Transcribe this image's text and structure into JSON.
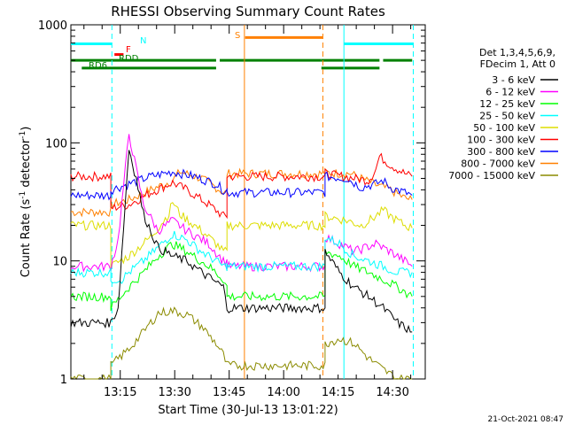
{
  "chart_data": {
    "type": "line",
    "title": "RHESSI Observing Summary Count Rates",
    "xlabel": "Start Time (30-Jul-13 13:01:22)",
    "ylabel_main": "Count Rate (s",
    "ylabel_sup1": "-1",
    "ylabel_mid": " detector",
    "ylabel_sup2": "-1",
    "ylabel_end": ")",
    "yscale": "log",
    "ylim": [
      1,
      1000
    ],
    "xlim_minutes": [
      0,
      97.6
    ],
    "y_ticks": [
      {
        "v": 1,
        "label": "1"
      },
      {
        "v": 10,
        "label": "10"
      },
      {
        "v": 100,
        "label": "100"
      },
      {
        "v": 1000,
        "label": "1000"
      }
    ],
    "x_ticks": [
      {
        "t": 13.6,
        "label": "13:15"
      },
      {
        "t": 28.6,
        "label": "13:30"
      },
      {
        "t": 43.6,
        "label": "13:45"
      },
      {
        "t": 58.6,
        "label": "14:00"
      },
      {
        "t": 73.6,
        "label": "14:15"
      },
      {
        "t": 88.6,
        "label": "14:30"
      }
    ],
    "legend_header": [
      "Det 1,3,4,5,6,9,",
      "FDecim 1, Att 0"
    ],
    "legend": [
      {
        "name": "3 - 6 keV",
        "color": "#000000"
      },
      {
        "name": "6 - 12 keV",
        "color": "#ff00ff"
      },
      {
        "name": "12 - 25 keV",
        "color": "#00ff00"
      },
      {
        "name": "25 - 50 keV",
        "color": "#00ffff"
      },
      {
        "name": "50 - 100 keV",
        "color": "#dddd00"
      },
      {
        "name": "100 - 300 keV",
        "color": "#ff0000"
      },
      {
        "name": "300 - 800 keV",
        "color": "#0000ff"
      },
      {
        "name": "800 - 7000 keV",
        "color": "#ff8000"
      },
      {
        "name": "7000 - 15000 keV",
        "color": "#8b8b00"
      }
    ],
    "series": [
      {
        "color": "#ff8000",
        "points": [
          [
            0,
            26
          ],
          [
            11,
            26
          ],
          [
            11,
            30
          ],
          [
            16,
            33
          ],
          [
            22,
            40
          ],
          [
            28,
            48
          ],
          [
            30,
            57
          ],
          [
            36,
            50
          ],
          [
            40,
            42
          ],
          [
            42,
            38
          ],
          [
            43,
            38
          ],
          [
            43,
            55
          ],
          [
            46,
            55
          ],
          [
            70,
            55
          ],
          [
            70,
            56
          ],
          [
            77,
            55
          ],
          [
            80,
            50
          ],
          [
            84,
            44
          ],
          [
            88,
            40
          ],
          [
            92,
            34
          ],
          [
            94,
            33
          ]
        ]
      },
      {
        "color": "#ff0000",
        "points": [
          [
            0,
            52
          ],
          [
            11,
            52
          ],
          [
            11,
            28
          ],
          [
            16,
            30
          ],
          [
            22,
            38
          ],
          [
            28,
            46
          ],
          [
            32,
            40
          ],
          [
            38,
            30
          ],
          [
            42,
            24
          ],
          [
            43,
            24
          ],
          [
            43,
            52
          ],
          [
            46,
            52
          ],
          [
            70,
            52
          ],
          [
            70,
            55
          ],
          [
            82,
            48
          ],
          [
            84,
            60
          ],
          [
            85,
            77
          ],
          [
            88,
            65
          ],
          [
            92,
            55
          ],
          [
            94,
            52
          ]
        ]
      },
      {
        "color": "#0000ff",
        "points": [
          [
            0,
            36
          ],
          [
            11,
            36
          ],
          [
            11,
            40
          ],
          [
            16,
            45
          ],
          [
            22,
            52
          ],
          [
            28,
            57
          ],
          [
            34,
            52
          ],
          [
            40,
            45
          ],
          [
            42,
            40
          ],
          [
            43,
            40
          ],
          [
            43,
            38
          ],
          [
            46,
            38
          ],
          [
            70,
            38
          ],
          [
            70,
            52
          ],
          [
            76,
            50
          ],
          [
            80,
            42
          ],
          [
            84,
            45
          ],
          [
            86,
            48
          ],
          [
            88,
            42
          ],
          [
            92,
            38
          ],
          [
            94,
            36
          ]
        ]
      },
      {
        "color": "#dddd00",
        "points": [
          [
            0,
            20
          ],
          [
            11,
            20
          ],
          [
            11,
            9
          ],
          [
            16,
            11
          ],
          [
            22,
            16
          ],
          [
            27,
            25
          ],
          [
            28,
            32
          ],
          [
            30,
            25
          ],
          [
            36,
            18
          ],
          [
            40,
            14
          ],
          [
            42,
            12
          ],
          [
            43,
            12
          ],
          [
            43,
            20
          ],
          [
            46,
            20
          ],
          [
            70,
            20
          ],
          [
            70,
            24
          ],
          [
            76,
            22
          ],
          [
            80,
            20
          ],
          [
            84,
            24
          ],
          [
            86,
            27
          ],
          [
            88,
            24
          ],
          [
            92,
            20
          ],
          [
            94,
            19
          ]
        ]
      },
      {
        "color": "#ff00ff",
        "points": [
          [
            0,
            9
          ],
          [
            11,
            9
          ],
          [
            13,
            15
          ],
          [
            16,
            120
          ],
          [
            18,
            60
          ],
          [
            20,
            30
          ],
          [
            24,
            18
          ],
          [
            28,
            22
          ],
          [
            32,
            18
          ],
          [
            38,
            14
          ],
          [
            42,
            10
          ],
          [
            43,
            10
          ],
          [
            43,
            9
          ],
          [
            46,
            9
          ],
          [
            70,
            9
          ],
          [
            70,
            16
          ],
          [
            74,
            14
          ],
          [
            78,
            12
          ],
          [
            84,
            14
          ],
          [
            88,
            12
          ],
          [
            92,
            10
          ],
          [
            94,
            9
          ]
        ]
      },
      {
        "color": "#00ffff",
        "points": [
          [
            0,
            8
          ],
          [
            11,
            8
          ],
          [
            11,
            7
          ],
          [
            14,
            7
          ],
          [
            16,
            8
          ],
          [
            20,
            10
          ],
          [
            24,
            13
          ],
          [
            28,
            17
          ],
          [
            32,
            15
          ],
          [
            36,
            12
          ],
          [
            40,
            10
          ],
          [
            42,
            9
          ],
          [
            43,
            9
          ],
          [
            43,
            9
          ],
          [
            46,
            9
          ],
          [
            70,
            9
          ],
          [
            70,
            16
          ],
          [
            74,
            14
          ],
          [
            78,
            11
          ],
          [
            82,
            10
          ],
          [
            86,
            9
          ],
          [
            90,
            8
          ],
          [
            94,
            8
          ]
        ]
      },
      {
        "color": "#00ff00",
        "points": [
          [
            0,
            5
          ],
          [
            11,
            5
          ],
          [
            11,
            4
          ],
          [
            16,
            6
          ],
          [
            20,
            8
          ],
          [
            24,
            11
          ],
          [
            28,
            14
          ],
          [
            32,
            12
          ],
          [
            38,
            9
          ],
          [
            42,
            7
          ],
          [
            43,
            6
          ],
          [
            43,
            5
          ],
          [
            46,
            5
          ],
          [
            70,
            5
          ],
          [
            70,
            12
          ],
          [
            74,
            11
          ],
          [
            78,
            9
          ],
          [
            82,
            8
          ],
          [
            86,
            7
          ],
          [
            90,
            6
          ],
          [
            94,
            5
          ]
        ]
      },
      {
        "color": "#000000",
        "points": [
          [
            0,
            3
          ],
          [
            11,
            3
          ],
          [
            13,
            4
          ],
          [
            16,
            90
          ],
          [
            18,
            50
          ],
          [
            20,
            25
          ],
          [
            24,
            13
          ],
          [
            28,
            11
          ],
          [
            32,
            10
          ],
          [
            36,
            8
          ],
          [
            42,
            6
          ],
          [
            43,
            4
          ],
          [
            46,
            4
          ],
          [
            70,
            4
          ],
          [
            70,
            12
          ],
          [
            74,
            8
          ],
          [
            78,
            6
          ],
          [
            82,
            5
          ],
          [
            86,
            4
          ],
          [
            90,
            3
          ],
          [
            94,
            2.5
          ]
        ]
      },
      {
        "color": "#8b8b00",
        "points": [
          [
            0,
            1
          ],
          [
            11,
            1
          ],
          [
            11,
            1.3
          ],
          [
            16,
            1.8
          ],
          [
            20,
            2.5
          ],
          [
            24,
            3.6
          ],
          [
            28,
            3.8
          ],
          [
            32,
            3.5
          ],
          [
            36,
            2.8
          ],
          [
            40,
            2
          ],
          [
            42,
            1.6
          ],
          [
            43,
            1.3
          ],
          [
            46,
            1.3
          ],
          [
            70,
            1.3
          ],
          [
            70,
            2
          ],
          [
            74,
            2.2
          ],
          [
            78,
            2.0
          ],
          [
            82,
            1.5
          ],
          [
            86,
            1.2
          ],
          [
            90,
            1
          ],
          [
            94,
            1
          ]
        ]
      }
    ],
    "status_bars": [
      {
        "label": "S",
        "color": "#ff8000",
        "y": 780,
        "segments": [
          [
            48,
            69.3
          ]
        ]
      },
      {
        "label": "N",
        "color": "#00ffff",
        "y": 690,
        "segments": [
          [
            0,
            11.3
          ],
          [
            75.2,
            94.3
          ]
        ]
      },
      {
        "label": "F",
        "color": "#ff0000",
        "y": 560,
        "segments": [
          [
            12,
            14.5
          ]
        ]
      },
      {
        "label": "RDD",
        "color": "#008000",
        "y": 500,
        "segments": [
          [
            0,
            40
          ],
          [
            41,
            69
          ],
          [
            69,
            85
          ],
          [
            86,
            94
          ]
        ]
      },
      {
        "label": "RD6",
        "color": "#008000",
        "y": 430,
        "segments": [
          [
            3,
            40
          ],
          [
            69,
            85
          ]
        ]
      }
    ],
    "boundaries": [
      {
        "t": 11.3,
        "style": "dash",
        "color": "#00ffff"
      },
      {
        "t": 47.8,
        "style": "solid",
        "color": "#ff8000"
      },
      {
        "t": 69.4,
        "style": "dash",
        "color": "#ff8000"
      },
      {
        "t": 75.2,
        "style": "solid",
        "color": "#00ffff"
      },
      {
        "t": 94.3,
        "style": "dash",
        "color": "#00ffff"
      }
    ],
    "footer": "21-Oct-2021 08:47"
  }
}
